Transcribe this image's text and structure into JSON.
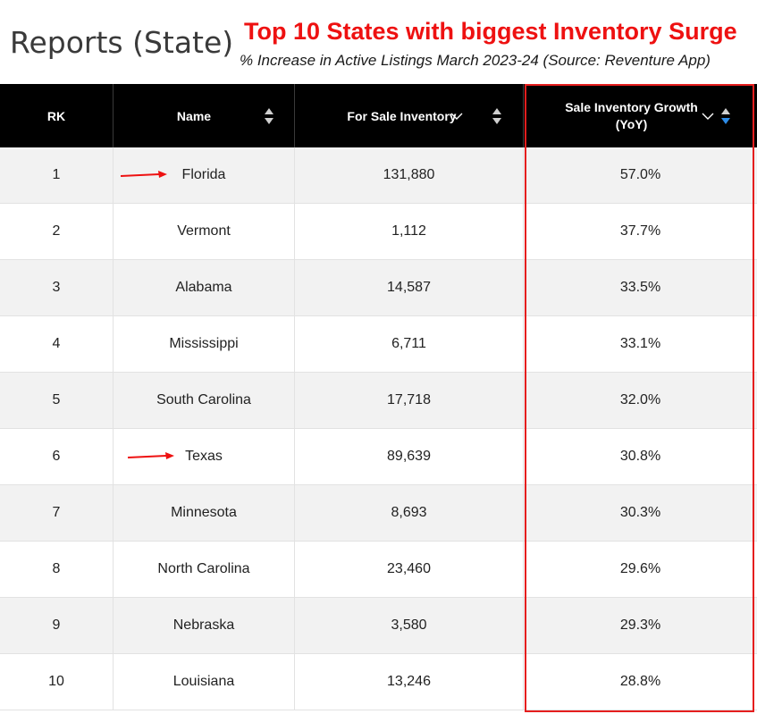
{
  "page": {
    "title": "Reports (State)"
  },
  "annotation": {
    "headline": "Top 10 States with biggest Inventory Surge",
    "subhead": "% Increase in Active Listings March 2023-24 (Source: Reventure App)",
    "accent_color": "#ee1111"
  },
  "table": {
    "columns": [
      {
        "label": "RK"
      },
      {
        "label": "Name"
      },
      {
        "label": "For Sale Inventory"
      },
      {
        "label": "Sale Inventory Growth (YoY)",
        "line1": "Sale Inventory Growth",
        "line2": "(YoY)"
      }
    ],
    "active_sort_color": "#2d8ce8",
    "rows": [
      {
        "rank": "1",
        "name": "Florida",
        "inventory": "131,880",
        "growth": "57.0%",
        "arrow": true
      },
      {
        "rank": "2",
        "name": "Vermont",
        "inventory": "1,112",
        "growth": "37.7%",
        "arrow": false
      },
      {
        "rank": "3",
        "name": "Alabama",
        "inventory": "14,587",
        "growth": "33.5%",
        "arrow": false
      },
      {
        "rank": "4",
        "name": "Mississippi",
        "inventory": "6,711",
        "growth": "33.1%",
        "arrow": false
      },
      {
        "rank": "5",
        "name": "South Carolina",
        "inventory": "17,718",
        "growth": "32.0%",
        "arrow": false
      },
      {
        "rank": "6",
        "name": "Texas",
        "inventory": "89,639",
        "growth": "30.8%",
        "arrow": true
      },
      {
        "rank": "7",
        "name": "Minnesota",
        "inventory": "8,693",
        "growth": "30.3%",
        "arrow": false
      },
      {
        "rank": "8",
        "name": "North Carolina",
        "inventory": "23,460",
        "growth": "29.6%",
        "arrow": false
      },
      {
        "rank": "9",
        "name": "Nebraska",
        "inventory": "3,580",
        "growth": "29.3%",
        "arrow": false
      },
      {
        "rank": "10",
        "name": "Louisiana",
        "inventory": "13,246",
        "growth": "28.8%",
        "arrow": false
      }
    ]
  }
}
